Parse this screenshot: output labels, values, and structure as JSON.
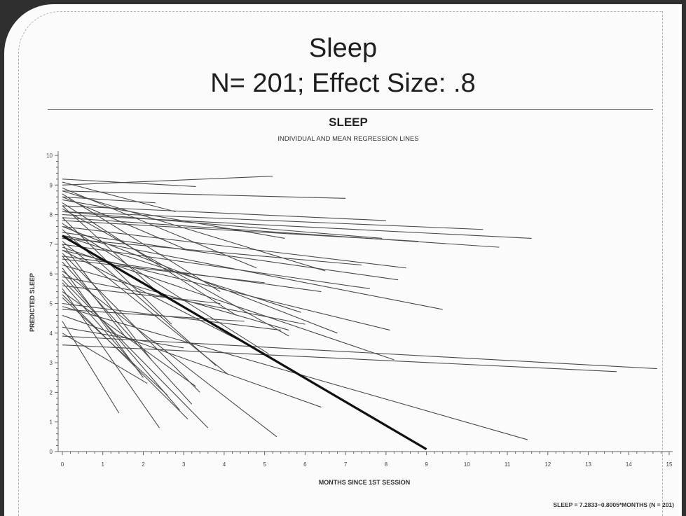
{
  "slide": {
    "title_line1": "Sleep",
    "title_line2": "N= 201; Effect Size:  .8"
  },
  "chart_data": {
    "type": "line",
    "title": "SLEEP",
    "subtitle": "INDIVIDUAL AND MEAN REGRESSION LINES",
    "xlabel": "MONTHS SINCE 1ST SESSION",
    "ylabel": "PREDICTED SLEEP",
    "xlim": [
      0,
      15
    ],
    "ylim": [
      0,
      10
    ],
    "xticks": [
      0,
      1,
      2,
      3,
      4,
      5,
      6,
      7,
      8,
      9,
      10,
      11,
      12,
      13,
      14,
      15
    ],
    "yticks": [
      0,
      1,
      2,
      3,
      4,
      5,
      6,
      7,
      8,
      9,
      10
    ],
    "grid": false,
    "equation": "SLEEP  =  7.2833−0.8005*MONTHS  (N  =  201)",
    "mean_line": {
      "x": [
        0,
        9.0
      ],
      "y": [
        7.2833,
        0.08
      ]
    },
    "individual_lines": [
      [
        0,
        9.2,
        3.3,
        8.95
      ],
      [
        0,
        9.0,
        5.2,
        9.3
      ],
      [
        0,
        8.8,
        7.0,
        8.55
      ],
      [
        0,
        8.6,
        2.3,
        8.4
      ],
      [
        0,
        8.3,
        8.0,
        7.8
      ],
      [
        0,
        8.1,
        10.4,
        7.5
      ],
      [
        0,
        8.0,
        11.6,
        7.2
      ],
      [
        0,
        7.9,
        10.8,
        6.9
      ],
      [
        0,
        8.5,
        5.5,
        7.2
      ],
      [
        0,
        7.8,
        8.8,
        7.1
      ],
      [
        0,
        7.6,
        8.5,
        6.2
      ],
      [
        0,
        7.4,
        8.3,
        5.8
      ],
      [
        0,
        7.2,
        7.4,
        6.3
      ],
      [
        0,
        7.0,
        7.6,
        5.5
      ],
      [
        0,
        7.3,
        9.4,
        4.8
      ],
      [
        0,
        6.8,
        8.1,
        4.1
      ],
      [
        0,
        6.6,
        6.4,
        5.4
      ],
      [
        0,
        6.5,
        5.0,
        5.7
      ],
      [
        0,
        6.9,
        8.2,
        3.1
      ],
      [
        0,
        6.3,
        5.6,
        4.1
      ],
      [
        0,
        5.9,
        6.0,
        4.3
      ],
      [
        0,
        5.6,
        3.9,
        5.0
      ],
      [
        0,
        5.0,
        5.4,
        4.1
      ],
      [
        0,
        4.8,
        4.5,
        4.4
      ],
      [
        0,
        4.2,
        3.0,
        3.5
      ],
      [
        0,
        3.9,
        14.7,
        2.8
      ],
      [
        0,
        3.6,
        13.7,
        2.7
      ],
      [
        0,
        4.9,
        11.5,
        0.4
      ],
      [
        0,
        4.6,
        6.4,
        1.5
      ],
      [
        0,
        6.1,
        5.3,
        0.5
      ],
      [
        0,
        5.8,
        3.6,
        0.8
      ],
      [
        0,
        5.3,
        3.1,
        1.1
      ],
      [
        0,
        5.5,
        2.4,
        0.8
      ],
      [
        0,
        4.4,
        1.4,
        1.3
      ],
      [
        0,
        6.0,
        2.9,
        1.4
      ],
      [
        0,
        6.4,
        3.2,
        1.6
      ],
      [
        0,
        6.7,
        3.4,
        2.0
      ],
      [
        0,
        5.2,
        2.6,
        1.9
      ],
      [
        0,
        7.1,
        4.1,
        2.6
      ],
      [
        0,
        7.5,
        3.8,
        2.9
      ],
      [
        0,
        7.7,
        5.1,
        3.3
      ],
      [
        0,
        8.2,
        5.6,
        3.9
      ],
      [
        0,
        8.4,
        4.3,
        4.6
      ],
      [
        0,
        8.7,
        3.9,
        5.4
      ],
      [
        0,
        8.9,
        4.8,
        6.2
      ],
      [
        0,
        7.0,
        2.2,
        3.1
      ],
      [
        0,
        6.2,
        2.0,
        2.5
      ],
      [
        0,
        5.7,
        1.8,
        2.9
      ],
      [
        0,
        7.9,
        2.7,
        4.3
      ],
      [
        0,
        8.3,
        2.5,
        5.2
      ],
      [
        0,
        6.6,
        1.6,
        3.8
      ],
      [
        0,
        4.0,
        2.1,
        2.3
      ],
      [
        0,
        7.6,
        6.8,
        4.0
      ],
      [
        0,
        8.8,
        6.5,
        6.1
      ],
      [
        0,
        8.1,
        7.9,
        7.2
      ],
      [
        0,
        9.1,
        2.8,
        8.1
      ],
      [
        0,
        7.3,
        5.9,
        4.7
      ],
      [
        0,
        6.8,
        4.6,
        3.6
      ],
      [
        0,
        5.4,
        3.3,
        2.2
      ],
      [
        0,
        8.6,
        3.1,
        6.8
      ]
    ]
  }
}
